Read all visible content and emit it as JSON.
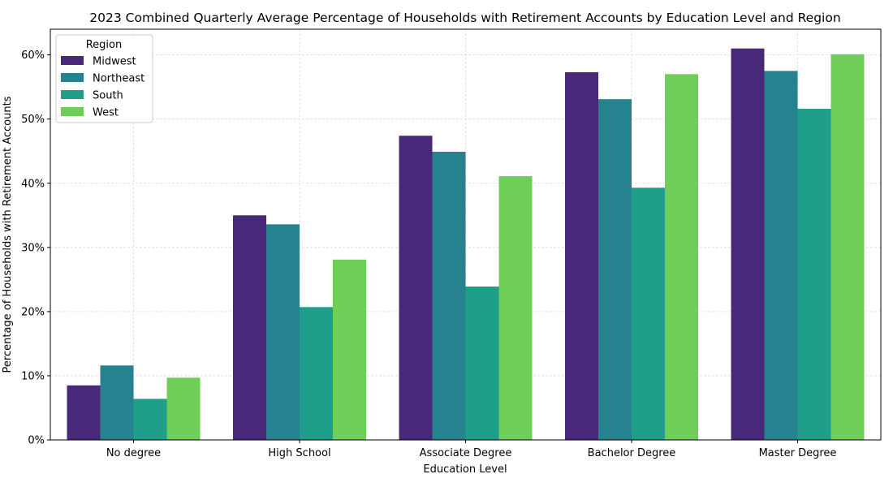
{
  "chart_data": {
    "type": "bar",
    "title": "2023 Combined Quarterly Average Percentage of Households with Retirement Accounts by Education Level and Region",
    "xlabel": "Education Level",
    "ylabel": "Percentage of Households with Retirement Accounts",
    "categories": [
      "No degree",
      "High School",
      "Associate Degree",
      "Bachelor Degree",
      "Master Degree"
    ],
    "ylim": [
      0,
      64
    ],
    "yticks": [
      0,
      10,
      20,
      30,
      40,
      50,
      60
    ],
    "ytick_labels": [
      "0%",
      "10%",
      "20%",
      "30%",
      "40%",
      "50%",
      "60%"
    ],
    "grid": true,
    "legend": {
      "title": "Region",
      "placement": "top-left"
    },
    "series": [
      {
        "name": "Midwest",
        "color": "#482878",
        "values": [
          8.5,
          35.0,
          47.4,
          57.3,
          61.0
        ]
      },
      {
        "name": "Northeast",
        "color": "#26828e",
        "values": [
          11.6,
          33.6,
          44.9,
          53.1,
          57.5
        ]
      },
      {
        "name": "South",
        "color": "#1f9e89",
        "values": [
          6.4,
          20.7,
          23.9,
          39.3,
          51.6
        ]
      },
      {
        "name": "West",
        "color": "#6ece58",
        "values": [
          9.7,
          28.1,
          41.1,
          57.0,
          60.1
        ]
      }
    ]
  }
}
